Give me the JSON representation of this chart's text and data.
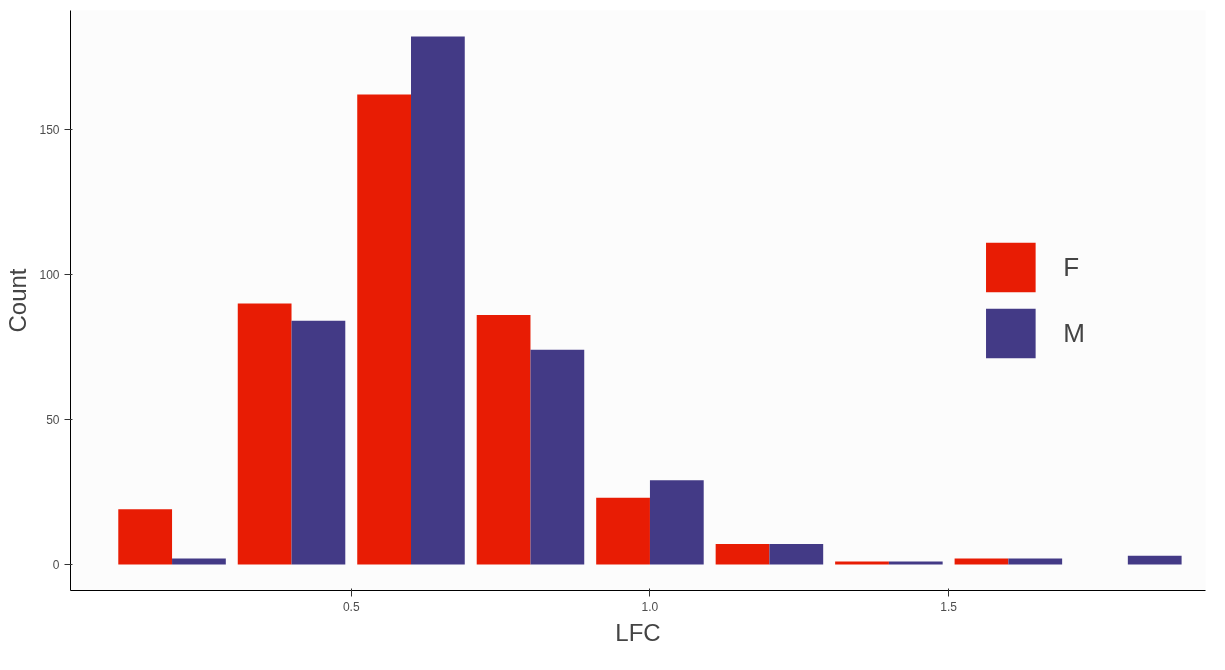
{
  "chart_data": {
    "type": "histogram",
    "xlabel": "LFC",
    "ylabel": "Count",
    "bins": [
      0.1,
      0.3,
      0.5,
      0.7,
      0.9,
      1.1,
      1.3,
      1.5,
      1.7,
      1.9
    ],
    "series": [
      {
        "name": "F",
        "color": "#e81c04",
        "values": [
          19,
          90,
          162,
          86,
          23,
          7,
          1,
          2,
          0
        ]
      },
      {
        "name": "M",
        "color": "#433a86",
        "values": [
          2,
          84,
          182,
          74,
          29,
          7,
          1,
          2,
          3
        ]
      }
    ],
    "xlim": [
      0.03,
      1.93
    ],
    "ylim": [
      -9,
      191
    ],
    "xticks": [
      0.5,
      {
        "value": 1.0,
        "label": "1.0"
      },
      1.5
    ],
    "yticks": [
      0,
      50,
      100,
      150
    ],
    "grid": false,
    "legend": "right"
  }
}
